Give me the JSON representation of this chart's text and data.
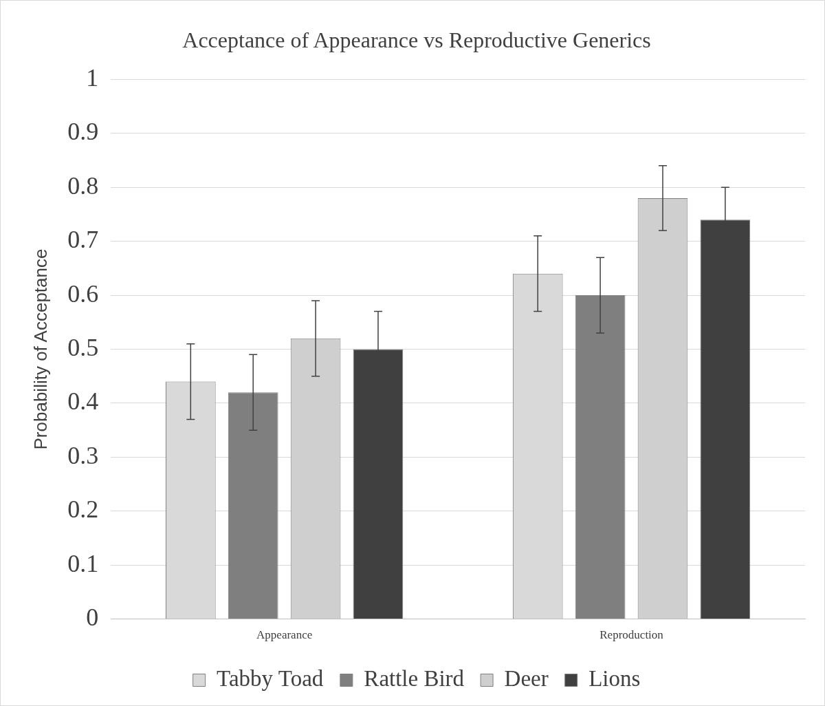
{
  "chart_data": {
    "type": "bar",
    "title": "Acceptance of Appearance vs Reproductive Generics",
    "ylabel": "Probability of Acceptance",
    "categories": [
      "Appearance",
      "Reproduction"
    ],
    "series": [
      {
        "name": "Tabby Toad",
        "color": "#d9d9d9",
        "values": [
          0.44,
          0.64
        ],
        "errors": [
          0.07,
          0.07
        ]
      },
      {
        "name": "Rattle Bird",
        "color": "#7f7f7f",
        "values": [
          0.42,
          0.6
        ],
        "errors": [
          0.07,
          0.07
        ]
      },
      {
        "name": "Deer",
        "color": "#cfcfcf",
        "values": [
          0.52,
          0.78
        ],
        "errors": [
          0.07,
          0.06
        ]
      },
      {
        "name": "Lions",
        "color": "#404040",
        "values": [
          0.5,
          0.74
        ],
        "errors": [
          0.07,
          0.06
        ]
      }
    ],
    "ylim": [
      0,
      1
    ],
    "yticks": [
      0,
      0.1,
      0.2,
      0.3,
      0.4,
      0.5,
      0.6,
      0.7,
      0.8,
      0.9,
      1
    ],
    "grid": "y",
    "legend": "bottom"
  }
}
